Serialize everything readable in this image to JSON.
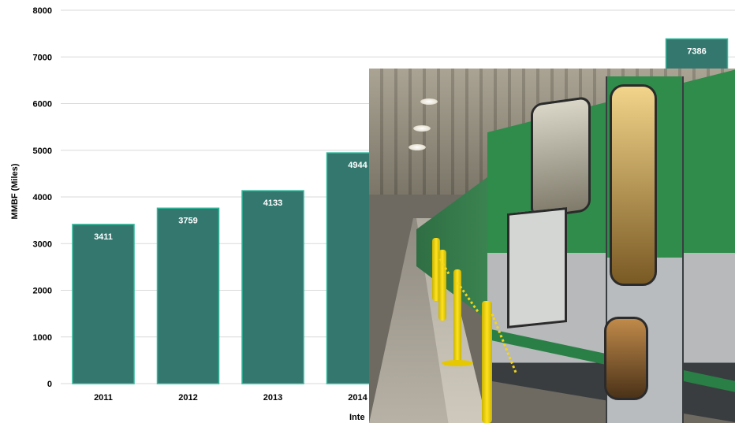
{
  "chart_data": {
    "type": "bar",
    "title": "",
    "categories": [
      "2011",
      "2012",
      "2013",
      "2014",
      "",
      "",
      "",
      ""
    ],
    "values": [
      3411,
      3759,
      4133,
      4944,
      null,
      null,
      null,
      7386
    ],
    "value_labels": [
      "3411",
      "3759",
      "4133",
      "4944",
      "",
      "",
      "",
      "7386"
    ],
    "ylabel": "MMBF (Miles)",
    "xlabel": "Inte",
    "ylim": [
      0,
      8000
    ],
    "yticks": [
      0,
      1000,
      2000,
      3000,
      4000,
      5000,
      6000,
      7000,
      8000
    ],
    "grid": true,
    "legend": "none",
    "bar_color": "#33776f",
    "bar_edge_color": "#2fb89a"
  },
  "overlay": {
    "photo_icon": "train-platform-photo",
    "train_green": "#2f8c4a",
    "post_yellow": "#ffe21f"
  }
}
